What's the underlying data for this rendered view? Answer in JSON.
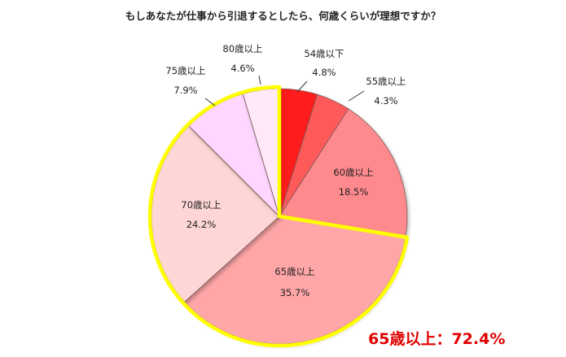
{
  "chart_data": {
    "type": "pie",
    "title": "もしあなたが仕事から引退するとしたら、何歳くらいが理想ですか？",
    "slices": [
      {
        "label": "54歳以下",
        "value": 4.8,
        "display": "4.8%",
        "color": "#ff1f1f",
        "highlighted": false
      },
      {
        "label": "55歳以上",
        "value": 4.3,
        "display": "4.3%",
        "color": "#ff5a5a",
        "highlighted": false
      },
      {
        "label": "60歳以上",
        "value": 18.5,
        "display": "18.5%",
        "color": "#ff8a8e",
        "highlighted": false
      },
      {
        "label": "65歳以上",
        "value": 35.7,
        "display": "35.7%",
        "color": "#ffa6a8",
        "highlighted": true
      },
      {
        "label": "70歳以上",
        "value": 24.2,
        "display": "24.2%",
        "color": "#ffd6d6",
        "highlighted": true
      },
      {
        "label": "75歳以上",
        "value": 7.9,
        "display": "7.9%",
        "color": "#ffd6ff",
        "highlighted": true
      },
      {
        "label": "80歳以上",
        "value": 4.6,
        "display": "4.6%",
        "color": "#ffe8f8",
        "highlighted": true
      }
    ],
    "highlight_color": "#ffff00",
    "annotation": "65歳以上：72.4%",
    "annotation_color": "#e00000",
    "legend": "none"
  }
}
